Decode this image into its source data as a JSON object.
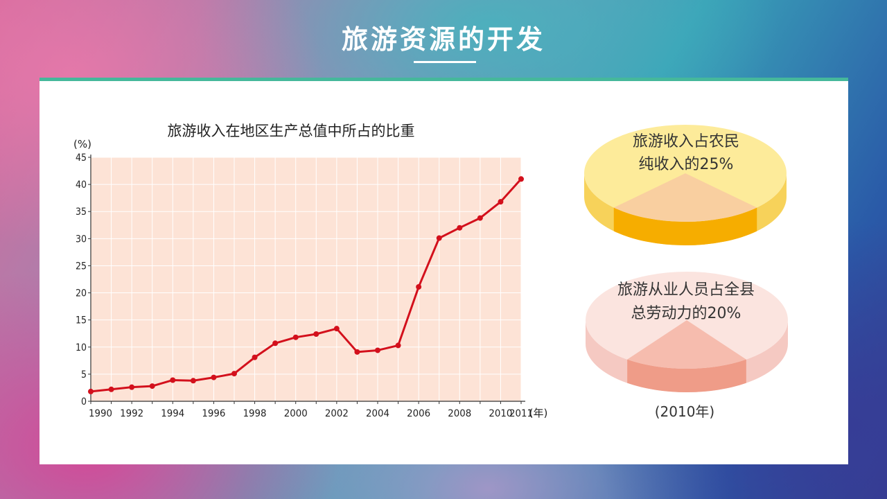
{
  "page_title": "旅游资源的开发",
  "colors": {
    "panel_accent": "#45b89b",
    "plot_bg": "#fde3d6",
    "line": "#d3101c",
    "pie1_top": "#fdeb9a",
    "pie1_side": "#f7d25a",
    "pie1_slice_top": "#f9cfa0",
    "pie1_slice_side": "#f6ad00",
    "pie2_top": "#fbe4df",
    "pie2_side": "#f5c9c2",
    "pie2_slice_top": "#f6bcae",
    "pie2_slice_side": "#ef9c88"
  },
  "chart_data": [
    {
      "type": "line",
      "title": "旅游收入在地区生产总值中所占的比重",
      "ylabel": "(%)",
      "xlabel": "(年)",
      "ylim": [
        0,
        45
      ],
      "xlim": [
        1990,
        2011
      ],
      "yticks": [
        "0",
        "5",
        "10",
        "15",
        "20",
        "25",
        "30",
        "35",
        "40",
        "45"
      ],
      "xtick_labels": [
        "1990",
        "1992",
        "1994",
        "1996",
        "1998",
        "2000",
        "2002",
        "2004",
        "2006",
        "2008",
        "2010",
        "2011"
      ],
      "grid": true,
      "x": [
        1990,
        1991,
        1992,
        1993,
        1994,
        1995,
        1996,
        1997,
        1998,
        1999,
        2000,
        2001,
        2002,
        2003,
        2004,
        2005,
        2006,
        2007,
        2008,
        2009,
        2010,
        2011
      ],
      "series": [
        {
          "values": [
            1.8,
            2.2,
            2.6,
            2.8,
            3.9,
            3.8,
            4.4,
            5.1,
            8.1,
            10.7,
            11.8,
            12.4,
            13.4,
            9.1,
            9.4,
            10.3,
            21.1,
            30.1,
            32.0,
            33.8,
            36.8,
            41.0
          ]
        }
      ]
    },
    {
      "type": "pie",
      "label_line1": "旅游收入占农民",
      "label_line2": "纯收入的25%",
      "values": [
        25,
        75
      ]
    },
    {
      "type": "pie",
      "label_line1": "旅游从业人员占全县",
      "label_line2": "总劳动力的20%",
      "values": [
        20,
        80
      ],
      "caption": "(2010年)"
    }
  ]
}
